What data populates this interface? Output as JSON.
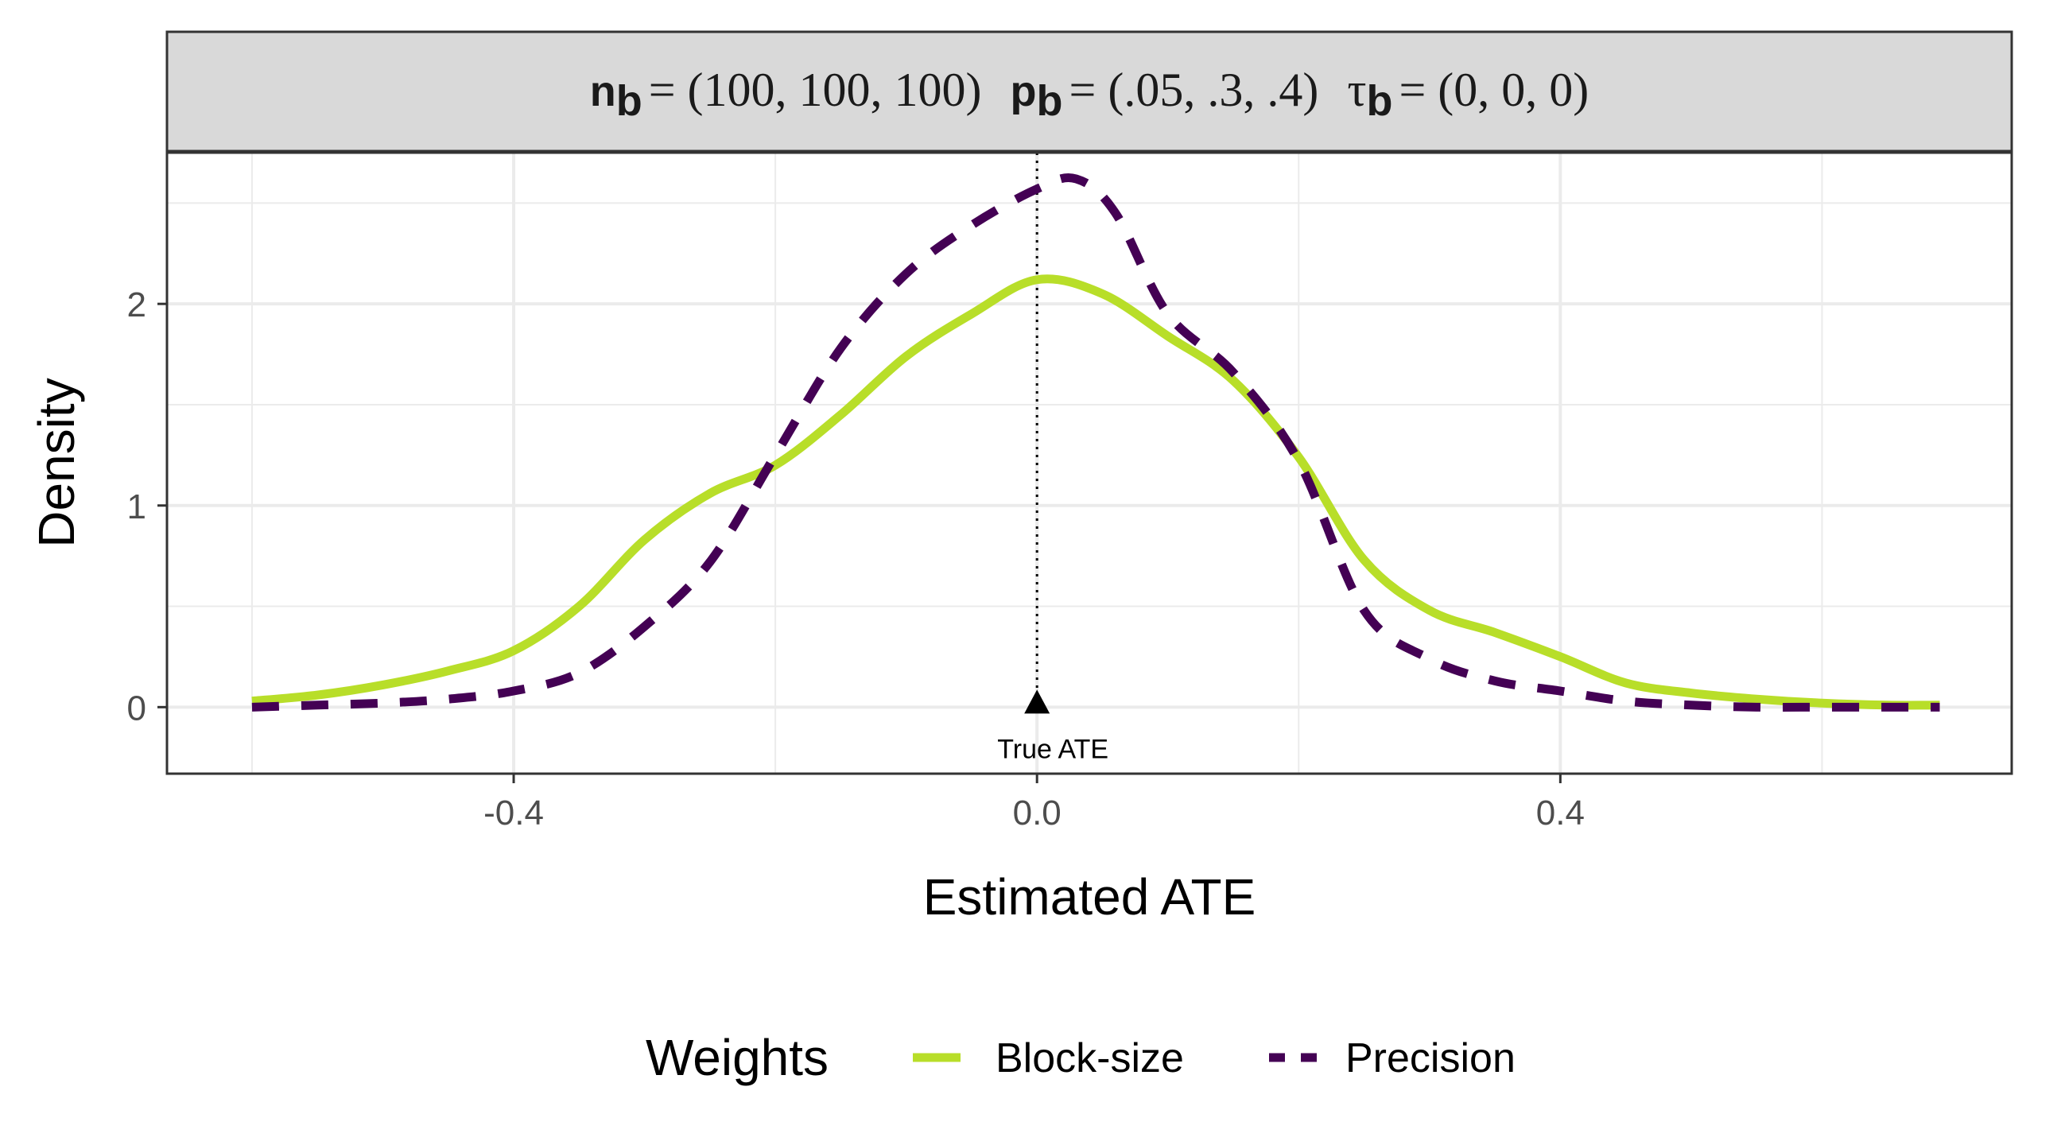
{
  "strip": {
    "n_label": "n",
    "n_sub": "b",
    "n_val": "= (100, 100, 100)",
    "p_label": "p",
    "p_sub": "b",
    "p_val": "= (.05, .3, .4)",
    "tau_label": "τ",
    "tau_sub": "b",
    "tau_val": "= (0, 0, 0)"
  },
  "colors": {
    "block_size": "#B8DE29",
    "precision": "#440154",
    "strip_bg": "#D9D9D9",
    "grid": "#EBEBEB"
  },
  "chart_data": {
    "type": "line",
    "xlabel": "Estimated ATE",
    "ylabel": "Density",
    "xlim": [
      -0.665,
      0.745
    ],
    "ylim": [
      -0.33,
      2.75
    ],
    "x_ticks": [
      -0.4,
      0.0,
      0.4
    ],
    "x_tick_labels": [
      "-0.4",
      "0.0",
      "0.4"
    ],
    "y_ticks": [
      0,
      1,
      2
    ],
    "y_tick_labels": [
      "0",
      "1",
      "2"
    ],
    "grid": true,
    "legend_position": "bottom",
    "legend_title": "Weights",
    "reference_line": {
      "x": 0.0,
      "label": "True ATE"
    },
    "series": [
      {
        "name": "Block-size",
        "style": "solid",
        "x": [
          -0.6,
          -0.55,
          -0.5,
          -0.45,
          -0.4,
          -0.35,
          -0.3,
          -0.25,
          -0.2,
          -0.15,
          -0.1,
          -0.05,
          0.0,
          0.05,
          0.1,
          0.15,
          0.2,
          0.25,
          0.3,
          0.35,
          0.4,
          0.45,
          0.5,
          0.55,
          0.6,
          0.65,
          0.69
        ],
        "y": [
          0.03,
          0.06,
          0.11,
          0.18,
          0.28,
          0.5,
          0.83,
          1.06,
          1.2,
          1.45,
          1.74,
          1.95,
          2.12,
          2.05,
          1.84,
          1.62,
          1.24,
          0.73,
          0.48,
          0.37,
          0.25,
          0.12,
          0.07,
          0.04,
          0.02,
          0.01,
          0.01
        ]
      },
      {
        "name": "Precision",
        "style": "dashed",
        "x": [
          -0.6,
          -0.55,
          -0.5,
          -0.45,
          -0.4,
          -0.35,
          -0.3,
          -0.25,
          -0.2,
          -0.15,
          -0.1,
          -0.05,
          0.0,
          0.03,
          0.06,
          0.1,
          0.15,
          0.2,
          0.25,
          0.3,
          0.35,
          0.4,
          0.45,
          0.5,
          0.55,
          0.6,
          0.65,
          0.69
        ],
        "y": [
          0.0,
          0.01,
          0.02,
          0.04,
          0.08,
          0.17,
          0.4,
          0.72,
          1.25,
          1.78,
          2.15,
          2.39,
          2.57,
          2.62,
          2.45,
          1.95,
          1.66,
          1.22,
          0.48,
          0.24,
          0.13,
          0.08,
          0.03,
          0.01,
          0.0,
          0.0,
          0.0,
          0.0
        ]
      }
    ]
  }
}
